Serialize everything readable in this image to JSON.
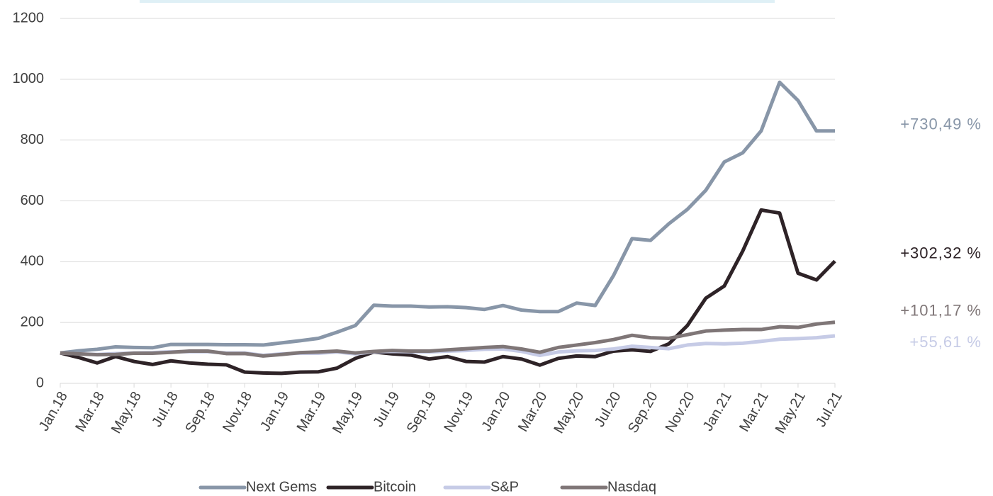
{
  "chart_data": {
    "type": "line",
    "categories": [
      "Jan.18",
      null,
      "Mar.18",
      null,
      "May.18",
      null,
      "Jul.18",
      null,
      "Sep.18",
      null,
      "Nov.18",
      null,
      "Jan.19",
      null,
      "Mar.19",
      null,
      "May.19",
      null,
      "Jul.19",
      null,
      "Sep.19",
      null,
      "Nov.19",
      null,
      "Jan.20",
      null,
      "Mar.20",
      null,
      "May.20",
      null,
      "Jul.20",
      null,
      "Sep.20",
      null,
      "Nov.20",
      null,
      "Jan.21",
      null,
      "Mar.21",
      null,
      "May.21",
      null,
      "Jul.21"
    ],
    "series": [
      {
        "name": "Next Gems",
        "color": "#8896a8",
        "end_label": "+730,49 %",
        "values": [
          100,
          107,
          112,
          120,
          118,
          117,
          128,
          128,
          128,
          127,
          127,
          126,
          133,
          140,
          148,
          168,
          190,
          257,
          254,
          254,
          251,
          252,
          249,
          243,
          256,
          241,
          236,
          236,
          264,
          256,
          355,
          476,
          470,
          525,
          572,
          635,
          728,
          758,
          830,
          990,
          930,
          830,
          830
        ]
      },
      {
        "name": "Bitcoin",
        "color": "#2e2327",
        "end_label": "+302,32 %",
        "values": [
          100,
          85,
          67,
          88,
          72,
          62,
          74,
          67,
          63,
          61,
          37,
          34,
          33,
          37,
          38,
          50,
          82,
          103,
          97,
          93,
          80,
          88,
          72,
          70,
          88,
          80,
          60,
          82,
          90,
          88,
          106,
          110,
          105,
          130,
          190,
          280,
          320,
          435,
          570,
          560,
          362,
          340,
          402
        ]
      },
      {
        "name": "S&P",
        "color": "#c6cbe6",
        "end_label": "+55,61  %",
        "values": [
          100,
          97,
          95,
          98,
          100,
          101,
          104,
          104,
          104,
          100,
          100,
          92,
          97,
          99,
          99,
          103,
          97,
          104,
          105,
          104,
          103,
          106,
          108,
          112,
          113,
          105,
          92,
          103,
          107,
          108,
          113,
          122,
          118,
          114,
          126,
          131,
          130,
          132,
          138,
          145,
          147,
          150,
          156
        ]
      },
      {
        "name": "Nasdaq",
        "color": "#7f7677",
        "end_label": "+101,17  %",
        "values": [
          100,
          97,
          94,
          95,
          99,
          99,
          102,
          106,
          106,
          98,
          98,
          90,
          95,
          101,
          103,
          106,
          100,
          105,
          108,
          106,
          106,
          110,
          114,
          118,
          121,
          113,
          102,
          118,
          126,
          134,
          144,
          158,
          150,
          148,
          160,
          172,
          175,
          177,
          177,
          186,
          184,
          195,
          201
        ]
      }
    ],
    "ylim": [
      0,
      1200
    ],
    "yticks": [
      0,
      200,
      400,
      600,
      800,
      1000,
      1200
    ],
    "grid": true
  }
}
